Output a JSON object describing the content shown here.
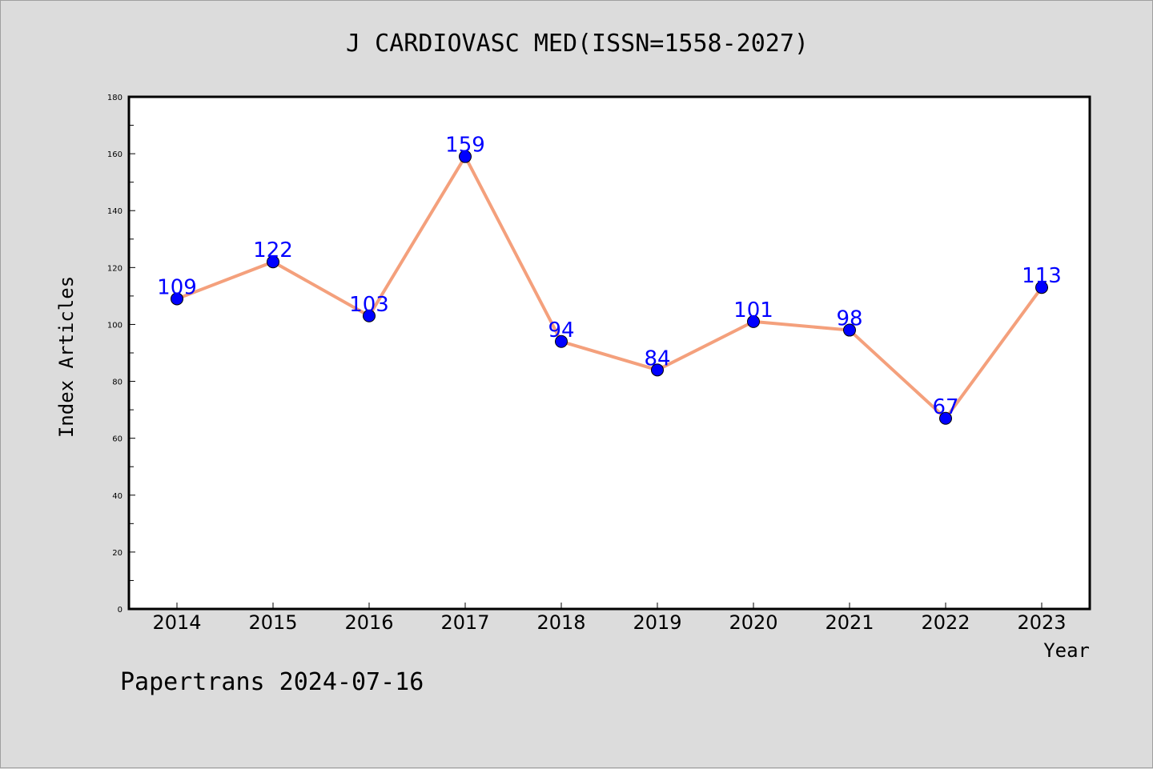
{
  "title": "J CARDIOVASC MED(ISSN=1558-2027)",
  "footer": "Papertrans 2024-07-16",
  "chart_data": {
    "type": "line",
    "title": "J CARDIOVASC MED(ISSN=1558-2027)",
    "xlabel": "Year",
    "ylabel": "Index Articles",
    "ylim": [
      0,
      180
    ],
    "y_ticks": [
      0,
      20,
      40,
      60,
      80,
      100,
      120,
      140,
      160,
      180
    ],
    "categories": [
      "2014",
      "2015",
      "2016",
      "2017",
      "2018",
      "2019",
      "2020",
      "2021",
      "2022",
      "2023"
    ],
    "series": [
      {
        "values": [
          109,
          122,
          103,
          159,
          94,
          84,
          101,
          98,
          67,
          113
        ],
        "line_color": "#f4a07c",
        "marker_color": "#0000ff"
      }
    ],
    "data_labels": true,
    "label_color": "#0000ff",
    "grid": false,
    "legend": "none"
  }
}
